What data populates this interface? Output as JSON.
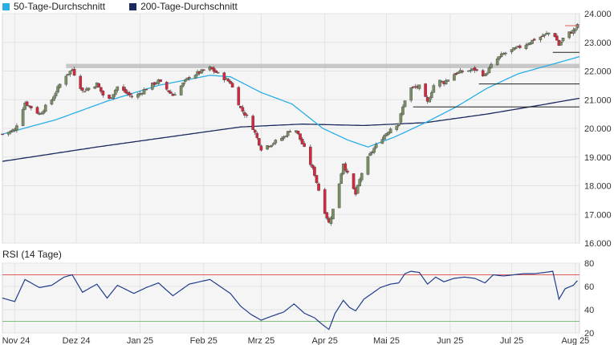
{
  "legend": {
    "ma50_label": "50-Tage-Durchschnitt",
    "ma200_label": "200-Tage-Durchschnitt"
  },
  "colors": {
    "ma50": "#29aee6",
    "ma200": "#1b2a5e",
    "up": "#7a8f63",
    "down": "#d9263e",
    "rsi": "#1f3d8a",
    "rsi_upper": "#e05a5a",
    "rsi_lower": "#7fc07f",
    "resistance": "#bbbbbb",
    "panel_bg": "#f5f5f5"
  },
  "chart_data": [
    {
      "type": "candlestick",
      "ylim": [
        16000,
        24000
      ],
      "y_ticks": [
        "16.000",
        "17.000",
        "18.000",
        "19.000",
        "20.000",
        "21.000",
        "22.000",
        "23.000",
        "24.000"
      ],
      "y_tick_values": [
        16000,
        17000,
        18000,
        19000,
        20000,
        21000,
        22000,
        23000,
        24000
      ],
      "x_ticks": [
        "Nov 24",
        "Dez 24",
        "Jan 25",
        "Feb 25",
        "Mrz 25",
        "Apr 25",
        "Mai 25",
        "Jun 25",
        "Jul 25",
        "Aug 25"
      ],
      "x_tick_days": [
        0,
        30,
        61,
        92,
        120,
        151,
        181,
        212,
        242,
        273
      ],
      "x_range_days": [
        -6,
        275
      ],
      "close_anchors": [
        [
          -6,
          19800
        ],
        [
          0,
          19950
        ],
        [
          5,
          20900
        ],
        [
          12,
          20500
        ],
        [
          18,
          21000
        ],
        [
          24,
          21800
        ],
        [
          28,
          22050
        ],
        [
          33,
          21300
        ],
        [
          40,
          21550
        ],
        [
          45,
          20900
        ],
        [
          50,
          21450
        ],
        [
          58,
          21050
        ],
        [
          64,
          21400
        ],
        [
          70,
          21650
        ],
        [
          77,
          21150
        ],
        [
          85,
          21800
        ],
        [
          90,
          21950
        ],
        [
          95,
          22100
        ],
        [
          100,
          21850
        ],
        [
          105,
          21600
        ],
        [
          110,
          20700
        ],
        [
          115,
          20200
        ],
        [
          120,
          19300
        ],
        [
          126,
          19500
        ],
        [
          131,
          19700
        ],
        [
          136,
          20100
        ],
        [
          141,
          19300
        ],
        [
          146,
          18400
        ],
        [
          150,
          17300
        ],
        [
          153,
          16700
        ],
        [
          156,
          17400
        ],
        [
          160,
          18800
        ],
        [
          163,
          18200
        ],
        [
          166,
          17700
        ],
        [
          170,
          18700
        ],
        [
          174,
          19200
        ],
        [
          178,
          19600
        ],
        [
          183,
          20000
        ],
        [
          187,
          20200
        ],
        [
          190,
          21000
        ],
        [
          193,
          21400
        ],
        [
          197,
          21450
        ],
        [
          201,
          20900
        ],
        [
          205,
          21700
        ],
        [
          209,
          21600
        ],
        [
          214,
          21900
        ],
        [
          219,
          22000
        ],
        [
          224,
          22050
        ],
        [
          229,
          21850
        ],
        [
          233,
          22300
        ],
        [
          238,
          22600
        ],
        [
          243,
          22750
        ],
        [
          248,
          22900
        ],
        [
          253,
          23100
        ],
        [
          258,
          23250
        ],
        [
          262,
          23400
        ],
        [
          265,
          22900
        ],
        [
          268,
          23250
        ],
        [
          272,
          23400
        ],
        [
          274,
          23580
        ]
      ],
      "ma50_anchors": [
        [
          -6,
          19800
        ],
        [
          20,
          20300
        ],
        [
          45,
          20950
        ],
        [
          70,
          21500
        ],
        [
          95,
          21850
        ],
        [
          105,
          21800
        ],
        [
          120,
          21250
        ],
        [
          135,
          20850
        ],
        [
          150,
          20000
        ],
        [
          162,
          19600
        ],
        [
          172,
          19350
        ],
        [
          185,
          19700
        ],
        [
          200,
          20200
        ],
        [
          215,
          20750
        ],
        [
          230,
          21400
        ],
        [
          245,
          21900
        ],
        [
          260,
          22200
        ],
        [
          275,
          22500
        ]
      ],
      "ma200_anchors": [
        [
          -6,
          18850
        ],
        [
          40,
          19350
        ],
        [
          80,
          19750
        ],
        [
          110,
          20050
        ],
        [
          140,
          20150
        ],
        [
          170,
          20100
        ],
        [
          200,
          20200
        ],
        [
          230,
          20500
        ],
        [
          255,
          20800
        ],
        [
          275,
          21050
        ]
      ],
      "resistance_zone": [
        22100,
        22250
      ],
      "horizontal_levels": [
        {
          "value": 23580,
          "color": "#e05a5a",
          "from_day": 268
        },
        {
          "value": 22650,
          "color": "#222222",
          "from_day": 262
        },
        {
          "value": 21550,
          "color": "#222222",
          "from_day": 226
        },
        {
          "value": 20750,
          "color": "#222222",
          "from_day": 194
        }
      ],
      "grid": "vertical-and-horizontal"
    },
    {
      "type": "line",
      "title": "RSI (14 Tage)",
      "ylim": [
        20,
        80
      ],
      "y_ticks": [
        "20",
        "40",
        "60",
        "80"
      ],
      "y_tick_values": [
        20,
        40,
        60,
        80
      ],
      "upper_band": 70,
      "lower_band": 30,
      "rsi_anchors": [
        [
          -6,
          50
        ],
        [
          0,
          47
        ],
        [
          5,
          66
        ],
        [
          12,
          59
        ],
        [
          18,
          61
        ],
        [
          24,
          68
        ],
        [
          28,
          70
        ],
        [
          33,
          55
        ],
        [
          40,
          62
        ],
        [
          45,
          50
        ],
        [
          50,
          61
        ],
        [
          58,
          54
        ],
        [
          64,
          59
        ],
        [
          70,
          63
        ],
        [
          77,
          52
        ],
        [
          85,
          62
        ],
        [
          90,
          64
        ],
        [
          95,
          66
        ],
        [
          100,
          60
        ],
        [
          105,
          54
        ],
        [
          110,
          43
        ],
        [
          115,
          36
        ],
        [
          120,
          31
        ],
        [
          126,
          35
        ],
        [
          131,
          38
        ],
        [
          136,
          45
        ],
        [
          141,
          37
        ],
        [
          146,
          33
        ],
        [
          150,
          27
        ],
        [
          153,
          23
        ],
        [
          156,
          37
        ],
        [
          160,
          48
        ],
        [
          163,
          42
        ],
        [
          166,
          39
        ],
        [
          170,
          49
        ],
        [
          174,
          54
        ],
        [
          178,
          59
        ],
        [
          183,
          62
        ],
        [
          187,
          63
        ],
        [
          190,
          71
        ],
        [
          193,
          73
        ],
        [
          197,
          72
        ],
        [
          201,
          62
        ],
        [
          205,
          68
        ],
        [
          209,
          64
        ],
        [
          214,
          67
        ],
        [
          219,
          68
        ],
        [
          224,
          67
        ],
        [
          229,
          63
        ],
        [
          233,
          70
        ],
        [
          238,
          69
        ],
        [
          243,
          70
        ],
        [
          248,
          71
        ],
        [
          253,
          71
        ],
        [
          258,
          72
        ],
        [
          262,
          73
        ],
        [
          265,
          49
        ],
        [
          268,
          58
        ],
        [
          272,
          61
        ],
        [
          274,
          65
        ]
      ]
    }
  ],
  "rsi_label": "RSI (14 Tage)"
}
